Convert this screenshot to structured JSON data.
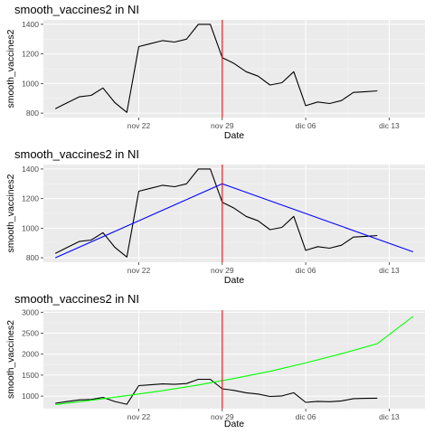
{
  "colors": {
    "panel_background": "#ebebeb",
    "grid": "#ffffff",
    "data_line": "#000000",
    "vline": "#ff0000",
    "linear_fit": "#0000ff",
    "exp_fit": "#00ff00"
  },
  "chart_data": [
    {
      "type": "line",
      "title": "smooth_vaccines2 in NI",
      "xlabel": "Date",
      "ylabel": "smooth_vaccines2",
      "x_ticks": [
        "nov 22",
        "nov 29",
        "dic 06",
        "dic 13"
      ],
      "x_tick_dates": [
        "2020-11-22",
        "2020-11-29",
        "2020-12-06",
        "2020-12-13"
      ],
      "xlim": [
        "2020-11-14",
        "2020-12-16"
      ],
      "y_ticks": [
        800,
        1000,
        1200,
        1400
      ],
      "ylim": [
        770,
        1430
      ],
      "grid": true,
      "vline": "2020-11-29",
      "series": [
        {
          "role": "observed",
          "x": [
            "2020-11-15",
            "2020-11-16",
            "2020-11-17",
            "2020-11-18",
            "2020-11-19",
            "2020-11-20",
            "2020-11-21",
            "2020-11-22",
            "2020-11-23",
            "2020-11-24",
            "2020-11-25",
            "2020-11-26",
            "2020-11-27",
            "2020-11-28",
            "2020-11-29",
            "2020-11-30",
            "2020-12-01",
            "2020-12-02",
            "2020-12-03",
            "2020-12-04",
            "2020-12-05",
            "2020-12-06",
            "2020-12-07",
            "2020-12-08",
            "2020-12-09",
            "2020-12-10",
            "2020-12-11",
            "2020-12-12",
            "2020-12-13",
            "2020-12-14",
            "2020-12-15"
          ],
          "values": [
            830,
            870,
            910,
            920,
            970,
            870,
            805,
            1250,
            1270,
            1290,
            1280,
            1300,
            1400,
            1400,
            1175,
            1135,
            1080,
            1050,
            990,
            1005,
            1080,
            850,
            875,
            865,
            885,
            940,
            945,
            950,
            null,
            null,
            null
          ]
        }
      ]
    },
    {
      "type": "line",
      "title": "smooth_vaccines2 in NI",
      "xlabel": "Date",
      "ylabel": "smooth_vaccines2",
      "x_ticks": [
        "nov 22",
        "nov 29",
        "dic 06",
        "dic 13"
      ],
      "x_tick_dates": [
        "2020-11-22",
        "2020-11-29",
        "2020-12-06",
        "2020-12-13"
      ],
      "xlim": [
        "2020-11-14",
        "2020-12-16"
      ],
      "y_ticks": [
        800,
        1000,
        1200,
        1400
      ],
      "ylim": [
        770,
        1430
      ],
      "grid": true,
      "vline": "2020-11-29",
      "series": [
        {
          "role": "observed",
          "x": [
            "2020-11-15",
            "2020-11-16",
            "2020-11-17",
            "2020-11-18",
            "2020-11-19",
            "2020-11-20",
            "2020-11-21",
            "2020-11-22",
            "2020-11-23",
            "2020-11-24",
            "2020-11-25",
            "2020-11-26",
            "2020-11-27",
            "2020-11-28",
            "2020-11-29",
            "2020-11-30",
            "2020-12-01",
            "2020-12-02",
            "2020-12-03",
            "2020-12-04",
            "2020-12-05",
            "2020-12-06",
            "2020-12-07",
            "2020-12-08",
            "2020-12-09",
            "2020-12-10",
            "2020-12-11",
            "2020-12-12",
            "2020-12-13",
            "2020-12-14",
            "2020-12-15"
          ],
          "values": [
            830,
            870,
            910,
            920,
            970,
            870,
            805,
            1250,
            1270,
            1290,
            1280,
            1300,
            1400,
            1400,
            1175,
            1135,
            1080,
            1050,
            990,
            1005,
            1080,
            850,
            875,
            865,
            885,
            940,
            945,
            950,
            null,
            null,
            null
          ]
        },
        {
          "role": "linear-fit",
          "x": [
            "2020-11-15",
            "2020-11-29",
            "2020-12-15"
          ],
          "values": [
            800,
            1300,
            840
          ]
        }
      ]
    },
    {
      "type": "line",
      "title": "smooth_vaccines2 in NI",
      "xlabel": "Date",
      "ylabel": "smooth_vaccines2",
      "x_ticks": [
        "nov 22",
        "nov 29",
        "dic 06",
        "dic 13"
      ],
      "x_tick_dates": [
        "2020-11-22",
        "2020-11-29",
        "2020-12-06",
        "2020-12-13"
      ],
      "xlim": [
        "2020-11-14",
        "2020-12-16"
      ],
      "y_ticks": [
        1000,
        1500,
        2000,
        2500,
        3000
      ],
      "ylim": [
        700,
        3050
      ],
      "grid": true,
      "vline": "2020-11-29",
      "series": [
        {
          "role": "observed",
          "x": [
            "2020-11-15",
            "2020-11-16",
            "2020-11-17",
            "2020-11-18",
            "2020-11-19",
            "2020-11-20",
            "2020-11-21",
            "2020-11-22",
            "2020-11-23",
            "2020-11-24",
            "2020-11-25",
            "2020-11-26",
            "2020-11-27",
            "2020-11-28",
            "2020-11-29",
            "2020-11-30",
            "2020-12-01",
            "2020-12-02",
            "2020-12-03",
            "2020-12-04",
            "2020-12-05",
            "2020-12-06",
            "2020-12-07",
            "2020-12-08",
            "2020-12-09",
            "2020-12-10",
            "2020-12-11",
            "2020-12-12",
            "2020-12-13",
            "2020-12-14",
            "2020-12-15"
          ],
          "values": [
            830,
            870,
            910,
            920,
            970,
            870,
            805,
            1250,
            1270,
            1290,
            1280,
            1300,
            1400,
            1400,
            1175,
            1135,
            1080,
            1050,
            990,
            1005,
            1080,
            850,
            875,
            865,
            885,
            940,
            945,
            950,
            null,
            null,
            null
          ]
        },
        {
          "role": "exponential-fit",
          "x": [
            "2020-11-15",
            "2020-11-18",
            "2020-11-21",
            "2020-11-24",
            "2020-11-27",
            "2020-11-30",
            "2020-12-03",
            "2020-12-06",
            "2020-12-09",
            "2020-12-12",
            "2020-12-15"
          ],
          "values": [
            800,
            900,
            1010,
            1130,
            1265,
            1420,
            1590,
            1790,
            2010,
            2250,
            2900
          ]
        }
      ]
    }
  ]
}
